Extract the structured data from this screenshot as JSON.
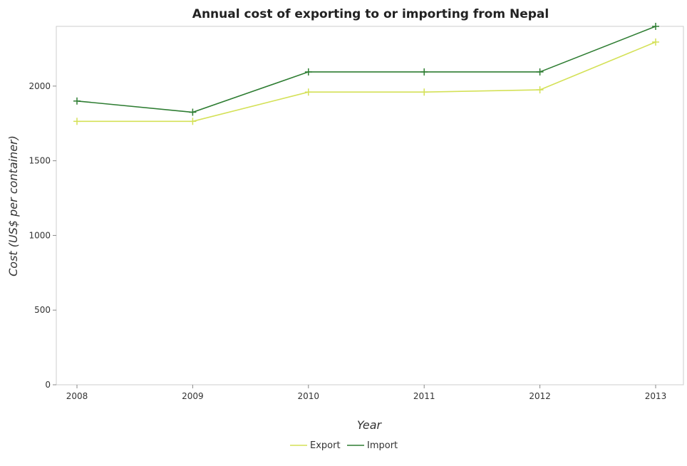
{
  "chart_data": {
    "type": "line",
    "title": "Annual cost of exporting to or importing from Nepal",
    "xlabel": "Year",
    "ylabel": "Cost (US$ per container)",
    "categories": [
      "2008",
      "2009",
      "2010",
      "2011",
      "2012",
      "2013"
    ],
    "ylim": [
      0,
      2400
    ],
    "yticks": [
      0,
      500,
      1000,
      1500,
      2000
    ],
    "grid": false,
    "legend_position": "bottom-center",
    "series": [
      {
        "name": "Export",
        "color": "#d4e157",
        "values": [
          1764,
          1764,
          1960,
          1960,
          1975,
          2295
        ]
      },
      {
        "name": "Import",
        "color": "#2e7d32",
        "values": [
          1900,
          1825,
          2095,
          2095,
          2095,
          2400
        ]
      }
    ]
  }
}
